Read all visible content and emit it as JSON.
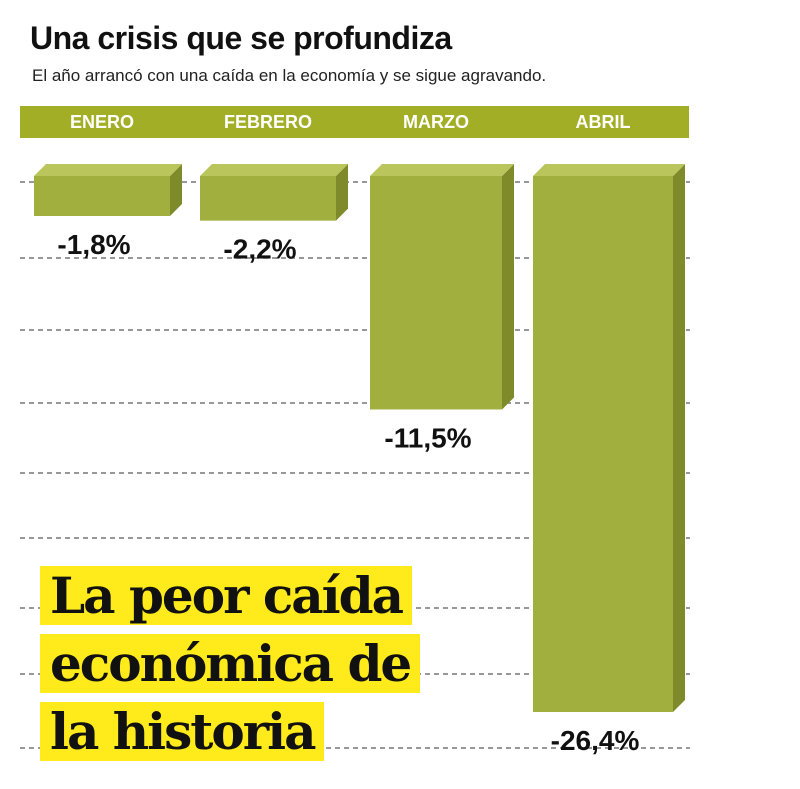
{
  "title": "Una crisis que se profundiza",
  "subtitle": "El año arrancó con una caída en la economía y se sigue agravando.",
  "headline": [
    "La peor caída",
    "económica de",
    "la historia"
  ],
  "colors": {
    "band": "#a3ae27",
    "bar_front": "#a1af3e",
    "bar_top": "#bac65c",
    "bar_side": "#7f8b2b",
    "gridline": "#777777",
    "highlight": "#ffeb1b"
  },
  "chart_data": {
    "type": "bar",
    "categories": [
      "ENERO",
      "FEBRERO",
      "MARZO",
      "ABRIL"
    ],
    "values": [
      -1.8,
      -2.2,
      -11.5,
      -26.4
    ],
    "data_labels": [
      "-1,8%",
      "-2,2%",
      "-11,5%",
      "-26,4%"
    ],
    "unit": "%",
    "ylim": [
      -26.4,
      0
    ],
    "grid": true,
    "bar_style": "3d"
  }
}
